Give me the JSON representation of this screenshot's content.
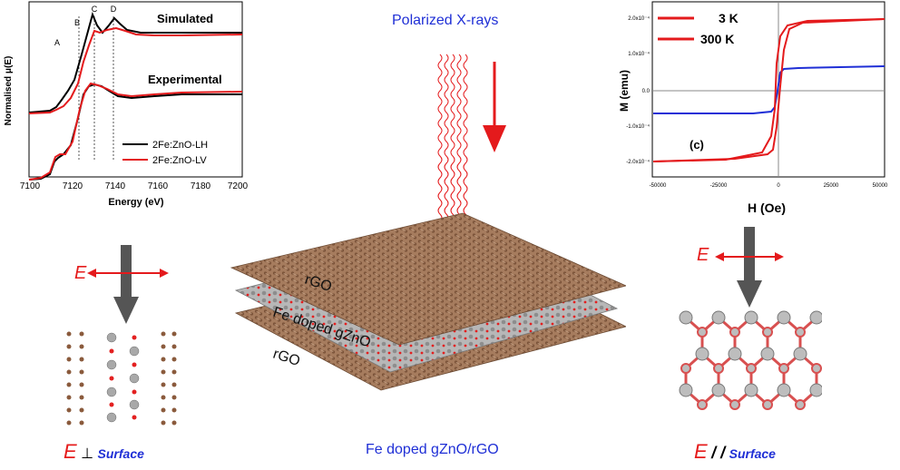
{
  "xanes": {
    "ylabel": "Normalised μ(E)",
    "xlabel": "Energy (eV)",
    "xticks": [
      "7100",
      "7120",
      "7140",
      "7160",
      "7180",
      "7200"
    ],
    "simulated_label": "Simulated",
    "experimental_label": "Experimental",
    "peaks": [
      "A",
      "B",
      "C",
      "D"
    ],
    "legend": [
      "2Fe:ZnO-LH",
      "2Fe:ZnO-LV"
    ],
    "colors": {
      "lh": "#000000",
      "lv": "#e41a1c"
    }
  },
  "center": {
    "top_label": "Polarized X-rays",
    "layer_labels": [
      "rGO",
      "Fe doped gZnO",
      "rGO"
    ],
    "bottom_label": "Fe doped gZnO/rGO"
  },
  "mag": {
    "ylabel": "M (emu)",
    "xlabel": "H (Oe)",
    "yticks": [
      "2.0x10⁻⁴",
      "1.0x10⁻⁴",
      "0.0",
      "-1.0x10⁻⁴",
      "-2.0x10⁻⁴"
    ],
    "xticks": [
      "-50000",
      "-25000",
      "0",
      "25000",
      "50000"
    ],
    "panel": "(c)",
    "legend": [
      "3 K",
      "300 K"
    ],
    "colors": {
      "k3": "#e41a1c",
      "k300": "#1f2fd6"
    }
  },
  "left_bottom": {
    "e_symbol": "E",
    "label_symbol": "E",
    "perp": "⊥",
    "surface": "Surface"
  },
  "right_bottom": {
    "e_symbol": "E",
    "label_symbol": "E",
    "par": "/ /",
    "surface": "Surface"
  }
}
